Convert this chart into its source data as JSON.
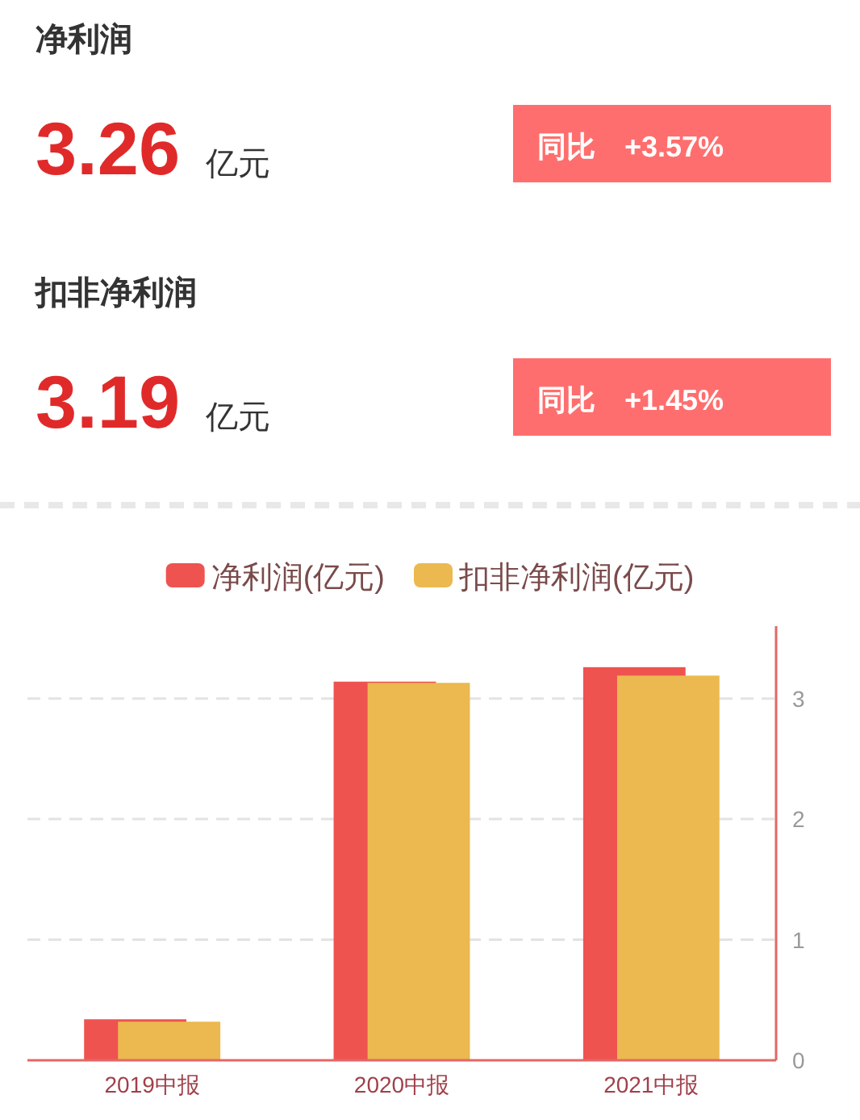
{
  "chart_data": [
    {
      "type": "other",
      "title": "净利润",
      "annotations": [
        "3.26",
        "亿元",
        "同比",
        "+3.57%"
      ]
    },
    {
      "type": "other",
      "title": "扣非净利润",
      "annotations": [
        "3.19",
        "亿元",
        "同比",
        "+1.45%"
      ]
    },
    {
      "type": "bar",
      "categories": [
        "2019中报",
        "2020中报",
        "2021中报"
      ],
      "series": [
        {
          "name": "净利润(亿元)",
          "color": "#ee5350",
          "values": [
            0.34,
            3.14,
            3.26
          ]
        },
        {
          "name": "扣非净利润(亿元)",
          "color": "#ebb94f",
          "values": [
            0.32,
            3.13,
            3.19
          ]
        }
      ],
      "ylim": [
        0,
        3.6
      ],
      "yticks": [
        0,
        1,
        2,
        3
      ],
      "grid": "y",
      "legend": "top"
    }
  ]
}
